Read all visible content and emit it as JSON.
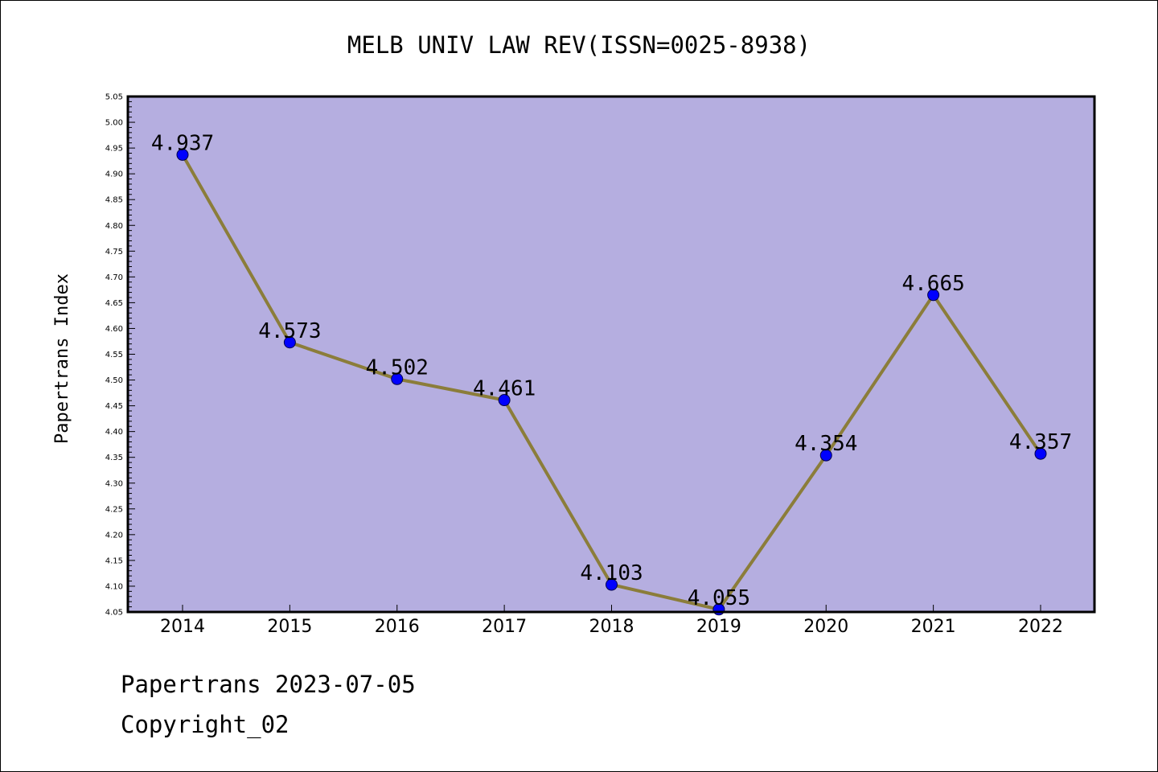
{
  "chart_data": {
    "type": "line",
    "title": "MELB UNIV LAW REV(ISSN=0025-8938)",
    "xlabel": "",
    "ylabel": "Papertrans Index",
    "categories": [
      "2014",
      "2015",
      "2016",
      "2017",
      "2018",
      "2019",
      "2020",
      "2021",
      "2022"
    ],
    "series": [
      {
        "values": [
          4.937,
          4.573,
          4.502,
          4.461,
          4.103,
          4.055,
          4.354,
          4.665,
          4.357
        ],
        "labels": [
          "4.937",
          "4.573",
          "4.502",
          "4.461",
          "4.103",
          "4.055",
          "4.354",
          "4.665",
          "4.357"
        ],
        "line_color": "#8b7d3a",
        "marker_color": "#0000ff"
      }
    ],
    "ylim": [
      4.05,
      5.05
    ],
    "ytick_step": 0.05,
    "y_tick_labels": [
      "4.05",
      "4.10",
      "4.15",
      "4.20",
      "4.25",
      "4.30",
      "4.35",
      "4.40",
      "4.45",
      "4.50",
      "4.55",
      "4.60",
      "4.65",
      "4.70",
      "4.75",
      "4.80",
      "4.85",
      "4.90",
      "4.95",
      "5.00",
      "5.05"
    ],
    "plot_background": "#b5aee0",
    "grid": false,
    "legend": "none"
  },
  "footer": {
    "line1": "Papertrans 2023-07-05",
    "line2": "Copyright_02"
  }
}
